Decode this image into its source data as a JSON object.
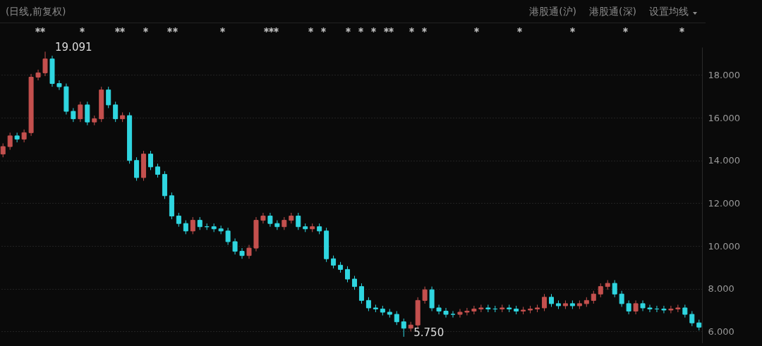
{
  "chart_data": {
    "type": "candlestick",
    "subtitle": "(日线,前复权)",
    "annotations": [
      "19.091",
      "5.750",
      "港股通(沪)",
      "港股通(深)",
      "设置均线"
    ],
    "categories": [
      null,
      null,
      null,
      null,
      null,
      null,
      null,
      null,
      null,
      null,
      null,
      null,
      null,
      null,
      null,
      null,
      null,
      null,
      null,
      null,
      null,
      null,
      null,
      null,
      null,
      null,
      null,
      null,
      null,
      null,
      null,
      null,
      null,
      null,
      null,
      null,
      null,
      null,
      null,
      null,
      null,
      null,
      null,
      null,
      null,
      null,
      null,
      null,
      null,
      null,
      null,
      null,
      null,
      null,
      null,
      null,
      null,
      null,
      null,
      null,
      null,
      null,
      null,
      null,
      null,
      null,
      null,
      null,
      null,
      null,
      null,
      null,
      null,
      null,
      null,
      null,
      null,
      null,
      null,
      null,
      null,
      null,
      null,
      null,
      null,
      null,
      null,
      null,
      null,
      null,
      null,
      null,
      null,
      null,
      null,
      null,
      null,
      null,
      null,
      null
    ],
    "ohlc": [
      [
        14.3,
        14.8,
        14.15,
        14.65
      ],
      [
        14.65,
        15.3,
        14.5,
        15.15
      ],
      [
        15.15,
        15.3,
        14.85,
        15.0
      ],
      [
        15.0,
        15.45,
        14.85,
        15.3
      ],
      [
        15.3,
        18.05,
        15.15,
        17.9
      ],
      [
        17.9,
        18.25,
        17.75,
        18.1
      ],
      [
        18.1,
        19.091,
        17.95,
        18.75
      ],
      [
        18.75,
        18.9,
        17.45,
        17.6
      ],
      [
        17.6,
        17.75,
        17.3,
        17.45
      ],
      [
        17.45,
        17.6,
        16.15,
        16.3
      ],
      [
        16.3,
        16.45,
        15.8,
        15.95
      ],
      [
        15.95,
        16.75,
        15.8,
        16.6
      ],
      [
        16.6,
        16.75,
        15.65,
        15.8
      ],
      [
        15.8,
        16.1,
        15.65,
        15.95
      ],
      [
        15.95,
        17.45,
        15.8,
        17.3
      ],
      [
        17.3,
        17.45,
        16.45,
        16.6
      ],
      [
        16.6,
        16.75,
        15.8,
        15.95
      ],
      [
        15.95,
        16.25,
        15.8,
        16.1
      ],
      [
        16.1,
        16.25,
        13.85,
        14.0
      ],
      [
        14.0,
        14.15,
        13.05,
        13.2
      ],
      [
        13.2,
        14.45,
        13.05,
        14.3
      ],
      [
        14.3,
        14.45,
        13.55,
        13.7
      ],
      [
        13.7,
        13.85,
        13.2,
        13.35
      ],
      [
        13.35,
        13.5,
        12.2,
        12.35
      ],
      [
        12.35,
        12.5,
        11.25,
        11.4
      ],
      [
        11.4,
        11.55,
        10.9,
        11.05
      ],
      [
        11.05,
        11.2,
        10.55,
        10.7
      ],
      [
        10.7,
        11.35,
        10.55,
        11.2
      ],
      [
        11.2,
        11.35,
        10.75,
        10.9
      ],
      [
        10.9,
        11.05,
        10.75,
        10.9
      ],
      [
        10.9,
        11.05,
        10.65,
        10.8
      ],
      [
        10.8,
        10.95,
        10.55,
        10.7
      ],
      [
        10.7,
        10.85,
        10.05,
        10.2
      ],
      [
        10.2,
        10.35,
        9.6,
        9.75
      ],
      [
        9.75,
        9.9,
        9.4,
        9.55
      ],
      [
        9.55,
        10.05,
        9.4,
        9.9
      ],
      [
        9.9,
        11.35,
        9.75,
        11.2
      ],
      [
        11.2,
        11.55,
        11.05,
        11.4
      ],
      [
        11.4,
        11.55,
        10.9,
        11.05
      ],
      [
        11.05,
        11.2,
        10.75,
        10.9
      ],
      [
        10.9,
        11.35,
        10.75,
        11.2
      ],
      [
        11.2,
        11.55,
        11.05,
        11.4
      ],
      [
        11.4,
        11.55,
        10.75,
        10.9
      ],
      [
        10.9,
        11.05,
        10.65,
        10.8
      ],
      [
        10.8,
        11.05,
        10.65,
        10.9
      ],
      [
        10.9,
        11.05,
        10.55,
        10.7
      ],
      [
        10.7,
        10.85,
        9.25,
        9.4
      ],
      [
        9.4,
        9.55,
        8.95,
        9.1
      ],
      [
        9.1,
        9.25,
        8.75,
        8.9
      ],
      [
        8.9,
        9.05,
        8.3,
        8.45
      ],
      [
        8.45,
        8.6,
        7.95,
        8.1
      ],
      [
        8.1,
        8.25,
        7.3,
        7.45
      ],
      [
        7.45,
        7.6,
        6.95,
        7.1
      ],
      [
        7.1,
        7.25,
        6.9,
        7.05
      ],
      [
        7.05,
        7.2,
        6.75,
        6.9
      ],
      [
        6.9,
        7.05,
        6.65,
        6.8
      ],
      [
        6.8,
        6.95,
        6.3,
        6.45
      ],
      [
        6.45,
        6.6,
        5.75,
        6.15
      ],
      [
        6.15,
        6.45,
        6.0,
        6.3
      ],
      [
        6.3,
        7.6,
        6.15,
        7.45
      ],
      [
        7.45,
        8.1,
        7.3,
        7.95
      ],
      [
        7.95,
        8.1,
        6.95,
        7.1
      ],
      [
        7.1,
        7.25,
        6.8,
        6.95
      ],
      [
        6.95,
        7.1,
        6.65,
        6.8
      ],
      [
        6.8,
        6.95,
        6.65,
        6.8
      ],
      [
        6.8,
        7.05,
        6.65,
        6.9
      ],
      [
        6.9,
        7.1,
        6.75,
        6.95
      ],
      [
        6.95,
        7.2,
        6.8,
        7.05
      ],
      [
        7.05,
        7.25,
        6.9,
        7.1
      ],
      [
        7.1,
        7.25,
        6.9,
        7.05
      ],
      [
        7.05,
        7.2,
        6.9,
        7.05
      ],
      [
        7.05,
        7.25,
        6.9,
        7.1
      ],
      [
        7.1,
        7.25,
        6.9,
        7.05
      ],
      [
        7.05,
        7.2,
        6.8,
        6.95
      ],
      [
        6.95,
        7.15,
        6.8,
        7.0
      ],
      [
        7.0,
        7.2,
        6.85,
        7.05
      ],
      [
        7.05,
        7.25,
        6.9,
        7.1
      ],
      [
        7.1,
        7.75,
        6.95,
        7.6
      ],
      [
        7.6,
        7.75,
        7.15,
        7.3
      ],
      [
        7.3,
        7.45,
        7.05,
        7.2
      ],
      [
        7.2,
        7.45,
        7.05,
        7.3
      ],
      [
        7.3,
        7.45,
        7.05,
        7.2
      ],
      [
        7.2,
        7.45,
        7.05,
        7.3
      ],
      [
        7.3,
        7.6,
        7.15,
        7.45
      ],
      [
        7.45,
        7.9,
        7.3,
        7.75
      ],
      [
        7.75,
        8.25,
        7.6,
        8.1
      ],
      [
        8.1,
        8.4,
        7.95,
        8.25
      ],
      [
        8.25,
        8.4,
        7.6,
        7.75
      ],
      [
        7.75,
        7.9,
        7.15,
        7.3
      ],
      [
        7.3,
        7.45,
        6.8,
        6.95
      ],
      [
        6.95,
        7.45,
        6.8,
        7.3
      ],
      [
        7.3,
        7.45,
        6.95,
        7.1
      ],
      [
        7.1,
        7.25,
        6.9,
        7.05
      ],
      [
        7.05,
        7.2,
        6.9,
        7.05
      ],
      [
        7.05,
        7.2,
        6.85,
        7.0
      ],
      [
        7.0,
        7.2,
        6.85,
        7.05
      ],
      [
        7.05,
        7.25,
        6.9,
        7.1
      ],
      [
        7.1,
        7.25,
        6.65,
        6.8
      ],
      [
        6.8,
        6.95,
        6.25,
        6.4
      ],
      [
        6.4,
        6.55,
        6.05,
        6.2
      ]
    ],
    "colors": [
      "#c4504e",
      "#c4504e",
      "#2fd6e0",
      "#c4504e",
      "#c4504e",
      "#c4504e",
      "#c4504e",
      "#2fd6e0",
      "#2fd6e0",
      "#2fd6e0",
      "#2fd6e0",
      "#c4504e",
      "#2fd6e0",
      "#c4504e",
      "#c4504e",
      "#2fd6e0",
      "#2fd6e0",
      "#c4504e",
      "#2fd6e0",
      "#2fd6e0",
      "#c4504e",
      "#2fd6e0",
      "#2fd6e0",
      "#2fd6e0",
      "#2fd6e0",
      "#2fd6e0",
      "#2fd6e0",
      "#c4504e",
      "#2fd6e0",
      "#2fd6e0",
      "#2fd6e0",
      "#2fd6e0",
      "#2fd6e0",
      "#2fd6e0",
      "#2fd6e0",
      "#c4504e",
      "#c4504e",
      "#c4504e",
      "#2fd6e0",
      "#2fd6e0",
      "#c4504e",
      "#c4504e",
      "#2fd6e0",
      "#2fd6e0",
      "#c4504e",
      "#2fd6e0",
      "#2fd6e0",
      "#2fd6e0",
      "#2fd6e0",
      "#2fd6e0",
      "#2fd6e0",
      "#2fd6e0",
      "#2fd6e0",
      "#2fd6e0",
      "#2fd6e0",
      "#2fd6e0",
      "#2fd6e0",
      "#2fd6e0",
      "#c4504e",
      "#c4504e",
      "#c4504e",
      "#2fd6e0",
      "#2fd6e0",
      "#2fd6e0",
      "#2fd6e0",
      "#c4504e",
      "#c4504e",
      "#c4504e",
      "#c4504e",
      "#2fd6e0",
      "#2fd6e0",
      "#c4504e",
      "#2fd6e0",
      "#2fd6e0",
      "#c4504e",
      "#c4504e",
      "#c4504e",
      "#c4504e",
      "#2fd6e0",
      "#2fd6e0",
      "#c4504e",
      "#2fd6e0",
      "#c4504e",
      "#c4504e",
      "#c4504e",
      "#c4504e",
      "#c4504e",
      "#2fd6e0",
      "#2fd6e0",
      "#2fd6e0",
      "#c4504e",
      "#2fd6e0",
      "#2fd6e0",
      "#2fd6e0",
      "#2fd6e0",
      "#c4504e",
      "#c4504e",
      "#2fd6e0",
      "#2fd6e0",
      "#2fd6e0"
    ],
    "ylim": [
      5.45,
      19.3
    ],
    "yticks": [
      {
        "value": 6,
        "label": "6.000"
      },
      {
        "value": 8,
        "label": "8.000"
      },
      {
        "value": 10,
        "label": "10.000"
      },
      {
        "value": 12,
        "label": "12.000"
      },
      {
        "value": 14,
        "label": "14.000"
      },
      {
        "value": 16,
        "label": "16.000"
      },
      {
        "value": 18,
        "label": "18.000"
      }
    ],
    "grid": "y",
    "tick_labels": "y"
  }
}
